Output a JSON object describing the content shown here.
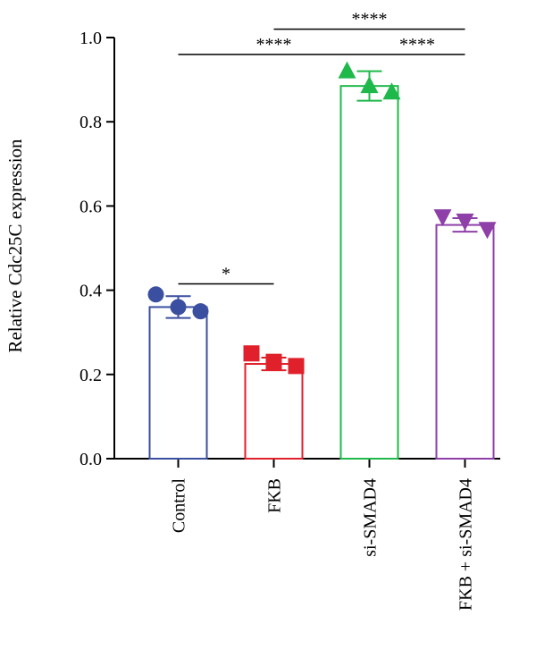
{
  "chart_data": {
    "type": "bar",
    "title": "",
    "xlabel": "",
    "ylabel": "Relative Cdc25C expression",
    "ylim": [
      0,
      1.0
    ],
    "yticks": [
      0.0,
      0.2,
      0.4,
      0.6,
      0.8,
      1.0
    ],
    "ytick_labels": [
      "0.0",
      "0.2",
      "0.4",
      "0.6",
      "0.8",
      "1.0"
    ],
    "grid": false,
    "categories": [
      "Control",
      "FKB",
      "si-SMAD4",
      "FKB + si-SMAD4"
    ],
    "values": [
      0.36,
      0.225,
      0.885,
      0.555
    ],
    "errors": [
      0.026,
      0.015,
      0.035,
      0.016
    ],
    "colors": [
      "#3B4FA0",
      "#E0202A",
      "#1FB84A",
      "#8E3FA8"
    ],
    "markers": [
      "circle",
      "square",
      "triangle-up",
      "triangle-down"
    ],
    "points": [
      [
        0.39,
        0.36,
        0.35
      ],
      [
        0.25,
        0.23,
        0.22
      ],
      [
        0.92,
        0.885,
        0.87
      ],
      [
        0.575,
        0.565,
        0.545
      ]
    ],
    "significance": [
      {
        "from": 0,
        "to": 1,
        "label": "*",
        "y": 0.415
      },
      {
        "from": 0,
        "to": 2,
        "label": "****",
        "y": 0.96
      },
      {
        "from": 1,
        "to": 3,
        "label": "****",
        "y": 1.02
      },
      {
        "from": 2,
        "to": 3,
        "label": "****",
        "y": 0.96
      }
    ]
  }
}
